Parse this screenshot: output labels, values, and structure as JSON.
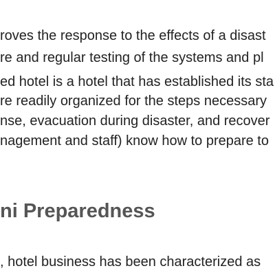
{
  "document": {
    "paragraph1": {
      "lines": [
        "roves the response to the effects of a disast",
        "re and regular testing of the systems and pl"
      ]
    },
    "paragraph2": {
      "lines": [
        "ed hotel is a hotel that has established its sta",
        "re readily organized for the steps necessary",
        "nse, evacuation during disaster, and recover",
        "nagement and staff) know how to prepare to"
      ]
    },
    "section_heading": "ni Preparedness",
    "paragraph3": {
      "lines": [
        ", hotel business has been characterized as"
      ]
    }
  }
}
